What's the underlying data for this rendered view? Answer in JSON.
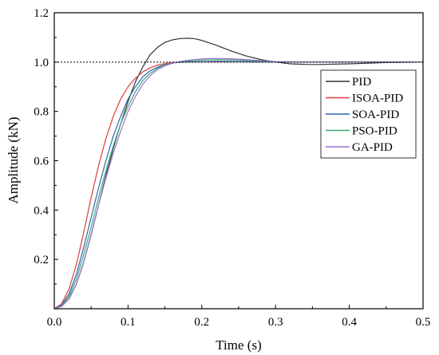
{
  "chart_data": {
    "type": "line",
    "xlabel": "Time (s)",
    "ylabel": "Amplitude (kN)",
    "xlim": [
      0.0,
      0.5
    ],
    "ylim": [
      0.0,
      1.2
    ],
    "xticks": [
      {
        "value": 0.0,
        "label": "0.0"
      },
      {
        "value": 0.1,
        "label": "0.1"
      },
      {
        "value": 0.2,
        "label": "0.2"
      },
      {
        "value": 0.3,
        "label": "0.3"
      },
      {
        "value": 0.4,
        "label": "0.4"
      },
      {
        "value": 0.5,
        "label": "0.5"
      }
    ],
    "yticks": [
      {
        "value": 0.2,
        "label": "0.2"
      },
      {
        "value": 0.4,
        "label": "0.4"
      },
      {
        "value": 0.6,
        "label": "0.6"
      },
      {
        "value": 0.8,
        "label": "0.8"
      },
      {
        "value": 1.0,
        "label": "1.0"
      },
      {
        "value": 1.2,
        "label": "1.2"
      }
    ],
    "reference_line": {
      "y": 1.0,
      "style": "dotted",
      "color": "#000000"
    },
    "grid": false,
    "legend_position": "top-right",
    "series": [
      {
        "name": "PID",
        "color": "#333333",
        "x": [
          0,
          0.01,
          0.02,
          0.03,
          0.04,
          0.05,
          0.06,
          0.07,
          0.08,
          0.09,
          0.1,
          0.11,
          0.12,
          0.13,
          0.14,
          0.15,
          0.16,
          0.17,
          0.18,
          0.19,
          0.2,
          0.22,
          0.24,
          0.26,
          0.28,
          0.3,
          0.32,
          0.35,
          0.4,
          0.45,
          0.5
        ],
        "y": [
          0,
          0.01,
          0.04,
          0.1,
          0.19,
          0.3,
          0.42,
          0.54,
          0.65,
          0.75,
          0.84,
          0.92,
          0.98,
          1.03,
          1.06,
          1.08,
          1.09,
          1.095,
          1.097,
          1.095,
          1.088,
          1.068,
          1.045,
          1.025,
          1.01,
          1.0,
          0.993,
          0.99,
          0.993,
          0.998,
          1.0
        ]
      },
      {
        "name": "ISOA-PID",
        "color": "#e03c3c",
        "x": [
          0,
          0.01,
          0.02,
          0.03,
          0.04,
          0.05,
          0.06,
          0.07,
          0.08,
          0.09,
          0.1,
          0.11,
          0.12,
          0.13,
          0.14,
          0.15,
          0.16,
          0.18,
          0.2,
          0.25,
          0.3,
          0.4,
          0.5
        ],
        "y": [
          0,
          0.02,
          0.08,
          0.18,
          0.31,
          0.45,
          0.58,
          0.69,
          0.78,
          0.85,
          0.9,
          0.935,
          0.96,
          0.977,
          0.988,
          0.994,
          0.998,
          1.0,
          1.001,
          1.001,
          1.0,
          1.0,
          1.0
        ]
      },
      {
        "name": "SOA-PID",
        "color": "#2e64b0",
        "x": [
          0,
          0.01,
          0.02,
          0.03,
          0.04,
          0.05,
          0.06,
          0.07,
          0.08,
          0.09,
          0.1,
          0.11,
          0.12,
          0.13,
          0.14,
          0.15,
          0.16,
          0.17,
          0.18,
          0.2,
          0.22,
          0.25,
          0.3,
          0.4,
          0.5
        ],
        "y": [
          0,
          0.015,
          0.06,
          0.14,
          0.25,
          0.37,
          0.49,
          0.6,
          0.7,
          0.78,
          0.85,
          0.9,
          0.94,
          0.965,
          0.98,
          0.99,
          0.996,
          0.999,
          1.0,
          1.002,
          1.003,
          1.002,
          1.0,
          1.0,
          1.0
        ]
      },
      {
        "name": "PSO-PID",
        "color": "#3aaa70",
        "x": [
          0,
          0.01,
          0.02,
          0.03,
          0.04,
          0.05,
          0.06,
          0.07,
          0.08,
          0.09,
          0.1,
          0.11,
          0.12,
          0.13,
          0.14,
          0.15,
          0.16,
          0.17,
          0.18,
          0.2,
          0.22,
          0.25,
          0.28,
          0.3,
          0.35,
          0.4,
          0.5
        ],
        "y": [
          0,
          0.012,
          0.05,
          0.12,
          0.22,
          0.33,
          0.45,
          0.56,
          0.66,
          0.75,
          0.82,
          0.88,
          0.925,
          0.955,
          0.975,
          0.988,
          0.996,
          1.0,
          1.004,
          1.008,
          1.01,
          1.008,
          1.003,
          1.001,
          1.0,
          1.0,
          1.0
        ]
      },
      {
        "name": "GA-PID",
        "color": "#9b6fd0",
        "x": [
          0,
          0.01,
          0.02,
          0.03,
          0.04,
          0.05,
          0.06,
          0.07,
          0.08,
          0.09,
          0.1,
          0.11,
          0.12,
          0.13,
          0.14,
          0.15,
          0.16,
          0.17,
          0.18,
          0.2,
          0.22,
          0.25,
          0.28,
          0.3,
          0.35,
          0.4,
          0.5
        ],
        "y": [
          0,
          0.01,
          0.04,
          0.1,
          0.19,
          0.3,
          0.42,
          0.53,
          0.63,
          0.72,
          0.8,
          0.86,
          0.91,
          0.945,
          0.97,
          0.985,
          0.995,
          1.002,
          1.007,
          1.013,
          1.015,
          1.012,
          1.006,
          1.002,
          1.0,
          1.0,
          1.0
        ]
      }
    ]
  }
}
